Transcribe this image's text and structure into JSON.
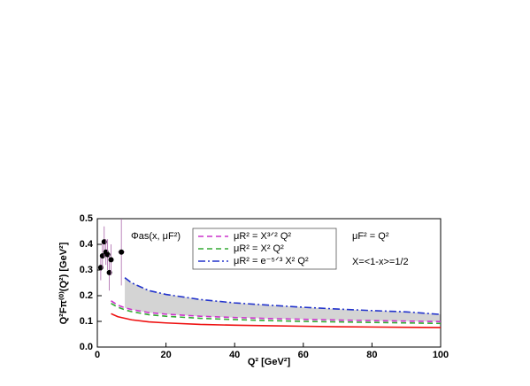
{
  "chart_data": {
    "type": "line",
    "x_label": "Q² [GeV²]",
    "y_label": "Q²Fπ⁽⁰⁾(Q²) [GeV²]",
    "annotations": [
      "Φas(x, μF²)",
      "μF² = Q²",
      "X=<1-x>=1/2"
    ],
    "x": [
      4,
      6,
      8,
      10,
      15,
      20,
      30,
      40,
      50,
      60,
      70,
      80,
      90,
      100
    ],
    "series": [
      {
        "name": "μR² = X³ᐟ² Q²",
        "color": "#cc33cc",
        "dash": "dashed",
        "values": [
          0.18,
          0.163,
          0.153,
          0.146,
          0.134,
          0.128,
          0.12,
          0.115,
          0.111,
          0.108,
          0.105,
          0.103,
          0.101,
          0.099
        ]
      },
      {
        "name": "μR² = X² Q²",
        "color": "#33aa33",
        "dash": "dashed",
        "values": [
          0.17,
          0.155,
          0.145,
          0.138,
          0.126,
          0.12,
          0.112,
          0.107,
          0.103,
          0.1,
          0.098,
          0.096,
          0.094,
          0.092
        ]
      },
      {
        "name": "μR² = e⁻⁵ᐟ³ X² Q²",
        "color": "#2233cc",
        "dash": "dashdot",
        "values": [
          null,
          null,
          0.27,
          0.25,
          0.22,
          0.205,
          0.185,
          0.172,
          0.163,
          0.155,
          0.148,
          0.142,
          0.137,
          0.127
        ]
      },
      {
        "color": "#ee1111",
        "dash": "solid",
        "values": [
          0.13,
          0.118,
          0.112,
          0.106,
          0.098,
          0.094,
          0.088,
          0.085,
          0.083,
          0.081,
          0.079,
          0.078,
          0.077,
          0.076
        ]
      }
    ],
    "points": {
      "color": "#000000",
      "error_color": "#aa66aa",
      "x": [
        1,
        1.5,
        2,
        2.5,
        3,
        3.5,
        4,
        7
      ],
      "y": [
        0.31,
        0.355,
        0.41,
        0.37,
        0.36,
        0.29,
        0.34,
        0.37
      ],
      "yerr": [
        0.05,
        0.05,
        0.06,
        0.05,
        0.06,
        0.07,
        0.06,
        0.13
      ],
      "xerr": [
        0.5,
        0.5,
        0.5,
        0.5,
        0.5,
        0.5,
        0.5,
        1
      ]
    },
    "xlim": [
      0,
      100
    ],
    "ylim": [
      0,
      0.5
    ],
    "xticks": [
      0,
      20,
      40,
      60,
      80,
      100
    ],
    "yticks": [
      {
        "value": 0,
        "label": "0.0"
      },
      0.1,
      0.2,
      0.3,
      0.4,
      0.5
    ]
  }
}
